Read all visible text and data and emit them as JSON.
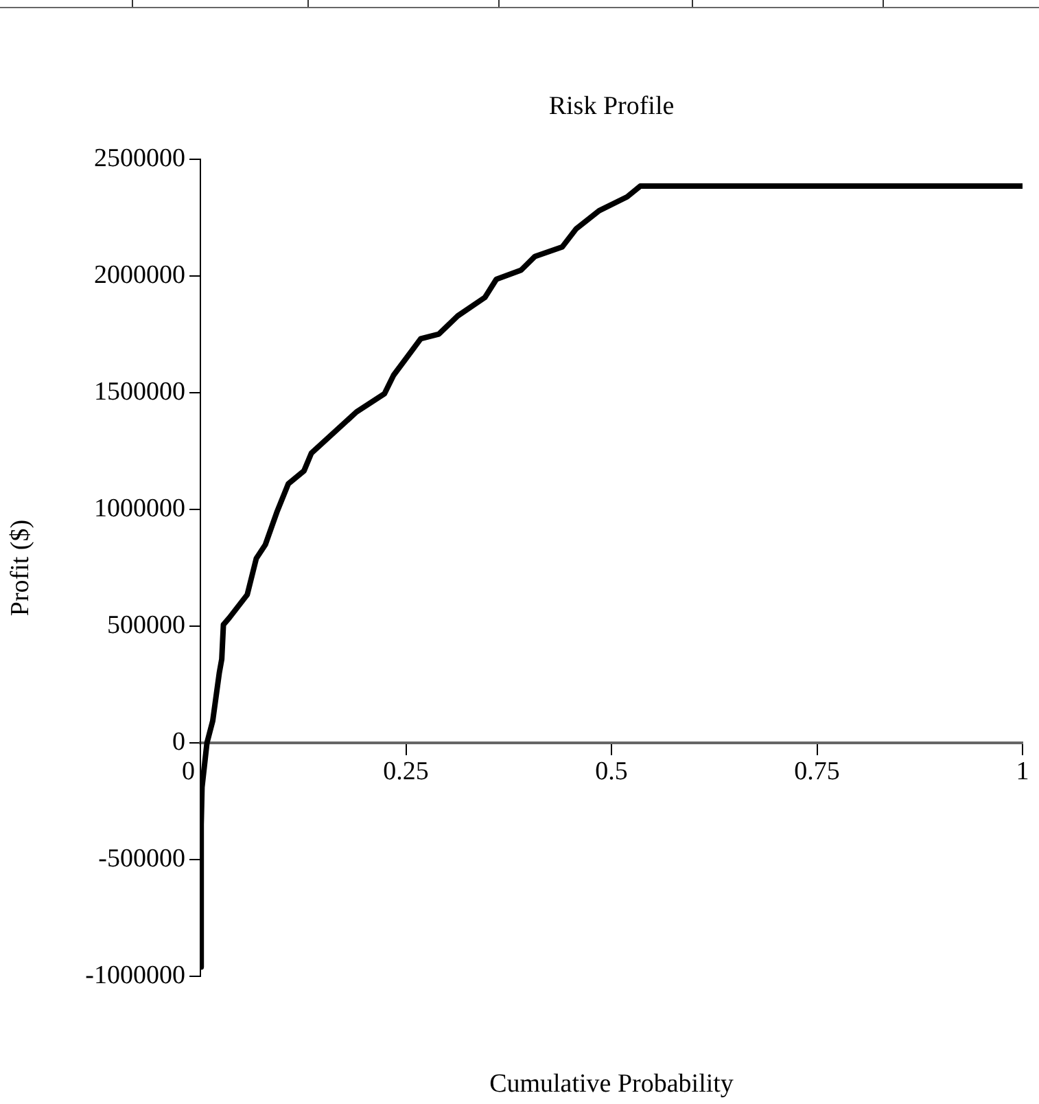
{
  "chart_data": {
    "type": "line",
    "title": "Risk Profile",
    "xlabel": "Cumulative Probability",
    "ylabel": "Profit ($)",
    "series": [
      {
        "color": "#000000",
        "x": [
          0,
          0.001,
          0.002,
          0.008,
          0.015,
          0.023,
          0.026,
          0.028,
          0.035,
          0.057,
          0.068,
          0.079,
          0.093,
          0.107,
          0.126,
          0.135,
          0.19,
          0.224,
          0.235,
          0.268,
          0.29,
          0.313,
          0.346,
          0.36,
          0.39,
          0.407,
          0.44,
          0.457,
          0.485,
          0.519,
          0.535,
          1
        ],
        "values": [
          -960000,
          -350000,
          -190000,
          0,
          94000,
          300000,
          359000,
          506000,
          535000,
          635000,
          790000,
          849000,
          988000,
          1110000,
          1165000,
          1241000,
          1418000,
          1496000,
          1575000,
          1731000,
          1751000,
          1829000,
          1908000,
          1986000,
          2025000,
          2084000,
          2124000,
          2202000,
          2280000,
          2339000,
          2385000,
          2385000
        ]
      }
    ],
    "xlim": [
      0,
      1
    ],
    "xticks": [
      0,
      0.25,
      0.5,
      0.75,
      1
    ],
    "ylim": [
      -1000000,
      2500000
    ],
    "yticks": [
      -1000000,
      -500000,
      0,
      500000,
      1000000,
      1500000,
      2000000,
      2500000
    ],
    "grid": false,
    "legend": false
  }
}
